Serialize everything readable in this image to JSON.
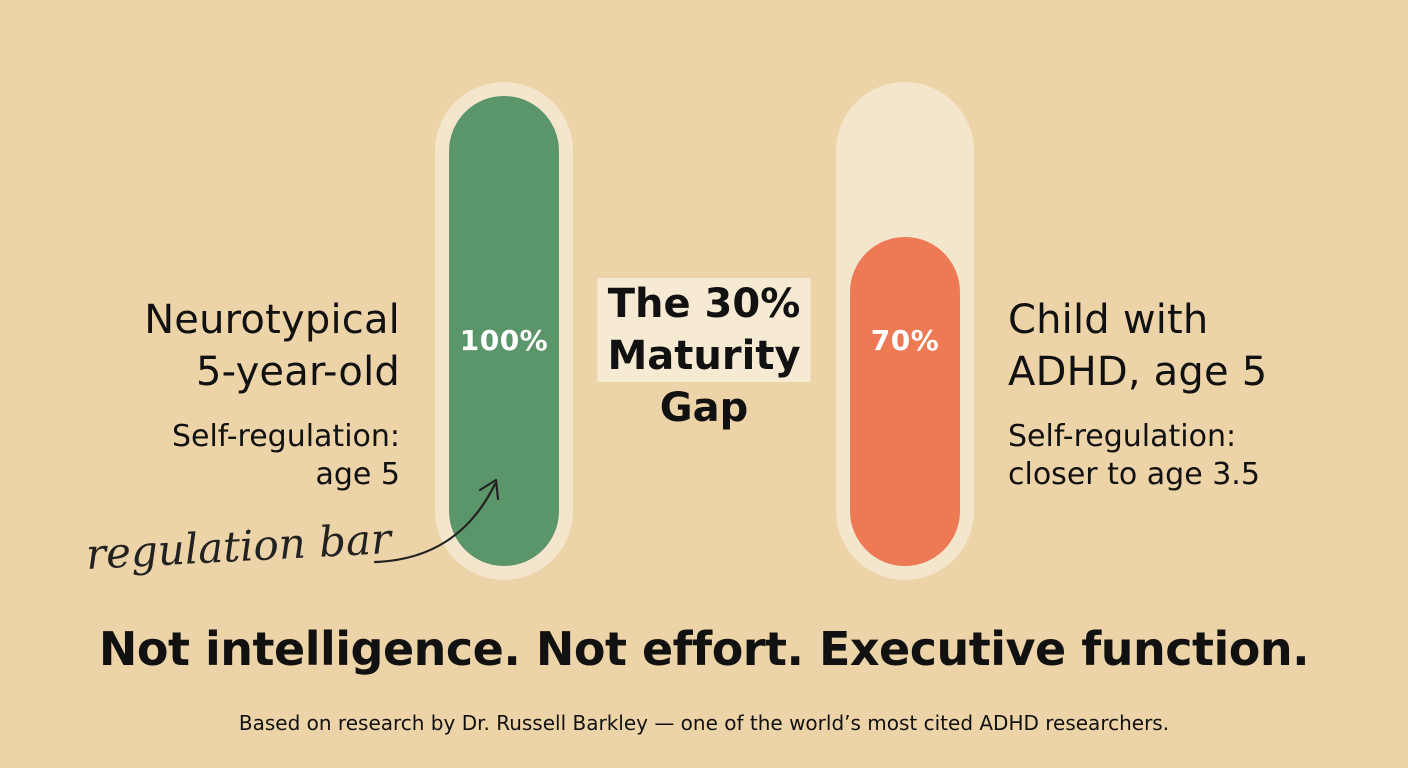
{
  "colors": {
    "background": "#edd3a8",
    "track": "#f3e6cc",
    "neurotypical_fill": "#5b956a",
    "adhd_fill": "#ee7a55",
    "title_highlight": "#f6ead2",
    "text": "#111111"
  },
  "neurotypical": {
    "title_line1": "Neurotypical",
    "title_line2": "5-year-old",
    "sub_line1": "Self-regulation:",
    "sub_line2": "age 5",
    "value_label": "100%",
    "fill_fraction": 1.0
  },
  "adhd": {
    "title_line1": "Child with",
    "title_line2": "ADHD, age 5",
    "sub_line1": "Self-regulation:",
    "sub_line2": "closer to age 3.5",
    "value_label": "70%",
    "fill_fraction": 0.7
  },
  "center": {
    "line1": "The 30%",
    "line2": "Maturity",
    "line3": "Gap"
  },
  "annotation": "regulation bar",
  "tagline": "Not intelligence. Not effort. Executive function.",
  "source": "Based on research by Dr. Russell Barkley — one of the world’s most cited ADHD researchers."
}
